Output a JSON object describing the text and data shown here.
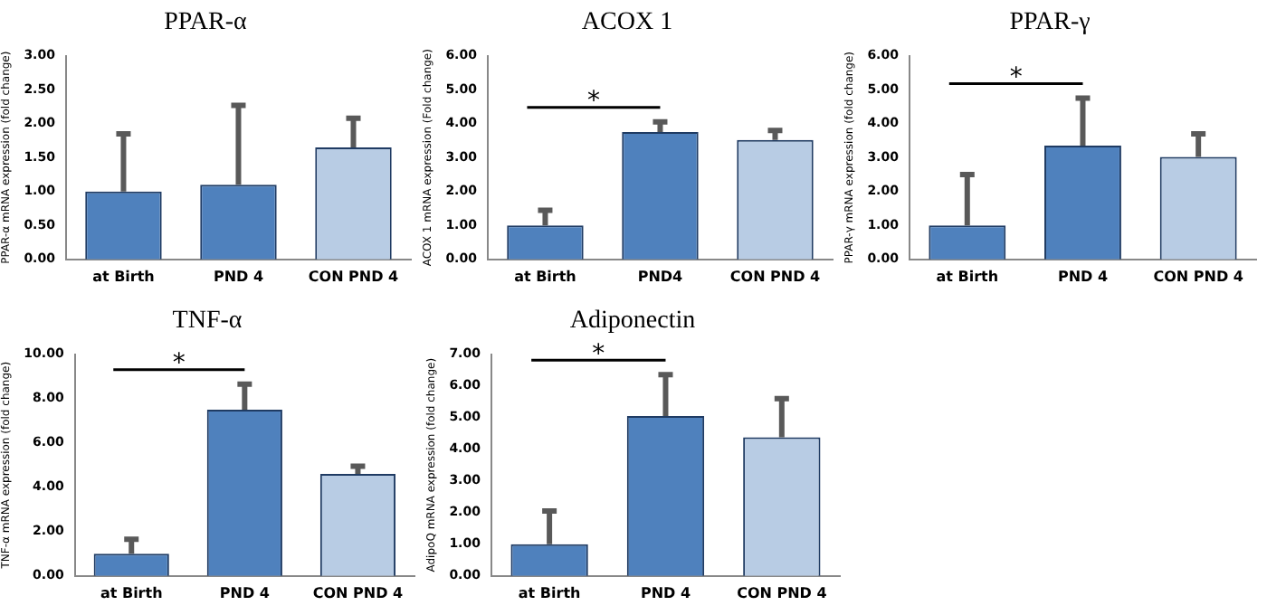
{
  "chart_data": [
    {
      "type": "bar",
      "title": "PPAR-α",
      "ylabel": "PPAR-α mRNA expression (fold change)",
      "categories": [
        "at Birth",
        "PND 4",
        "CON PND 4"
      ],
      "values": [
        1.0,
        1.1,
        1.65
      ],
      "errors": [
        [
          1.0,
          1.85
        ],
        [
          1.1,
          2.27
        ],
        [
          1.65,
          2.08
        ]
      ],
      "colors": [
        "#4f81bd",
        "#4f81bd",
        "#b8cce4"
      ],
      "ylim": [
        0,
        3
      ],
      "yticks": [
        {
          "value": 0,
          "label": "0.00"
        },
        {
          "value": 0.5,
          "label": "0.50"
        },
        {
          "value": 1,
          "label": "1.00"
        },
        {
          "value": 1.5,
          "label": "1.50"
        },
        {
          "value": 2,
          "label": "2.00"
        },
        {
          "value": 2.5,
          "label": "2.50"
        },
        {
          "value": 3,
          "label": "3.00"
        }
      ]
    },
    {
      "type": "bar",
      "title": "ACOX 1",
      "ylabel": "ACOX 1 mRNA expression (Fold change)",
      "categories": [
        "at Birth",
        "PND4",
        "CON PND 4"
      ],
      "values": [
        1.0,
        3.75,
        3.52
      ],
      "errors": [
        [
          1.0,
          1.45
        ],
        [
          3.75,
          4.05
        ],
        [
          3.52,
          3.8
        ]
      ],
      "colors": [
        "#4f81bd",
        "#4f81bd",
        "#b8cce4"
      ],
      "ylim": [
        0,
        6
      ],
      "yticks": [
        {
          "value": 0,
          "label": "0.00"
        },
        {
          "value": 1,
          "label": "1.00"
        },
        {
          "value": 2,
          "label": "2.00"
        },
        {
          "value": 3,
          "label": "3.00"
        },
        {
          "value": 4,
          "label": "4.00"
        },
        {
          "value": 5,
          "label": "5.00"
        },
        {
          "value": 6,
          "label": "6.00"
        }
      ],
      "annotations": [
        "*"
      ]
    },
    {
      "type": "bar",
      "title": "PPAR-γ",
      "ylabel": "PPAR-γ mRNA expression (fold change)",
      "categories": [
        "at Birth",
        "PND 4",
        "CON PND 4"
      ],
      "values": [
        1.0,
        3.35,
        3.02
      ],
      "errors": [
        [
          1.0,
          2.5
        ],
        [
          3.35,
          4.75
        ],
        [
          3.02,
          3.7
        ]
      ],
      "colors": [
        "#4f81bd",
        "#4f81bd",
        "#b8cce4"
      ],
      "ylim": [
        0,
        6
      ],
      "yticks": [
        {
          "value": 0,
          "label": "0.00"
        },
        {
          "value": 1,
          "label": "1.00"
        },
        {
          "value": 2,
          "label": "2.00"
        },
        {
          "value": 3,
          "label": "3.00"
        },
        {
          "value": 4,
          "label": "4.00"
        },
        {
          "value": 5,
          "label": "5.00"
        },
        {
          "value": 6,
          "label": "6.00"
        }
      ],
      "annotations": [
        "*"
      ]
    },
    {
      "type": "bar",
      "title": "TNF-α",
      "ylabel": "TNF-α mRNA expression (fold change)",
      "categories": [
        "at Birth",
        "PND 4",
        "CON PND 4"
      ],
      "values": [
        1.0,
        7.5,
        4.6
      ],
      "errors": [
        [
          1.0,
          1.65
        ],
        [
          7.5,
          8.65
        ],
        [
          4.6,
          4.95
        ]
      ],
      "colors": [
        "#4f81bd",
        "#4f81bd",
        "#b8cce4"
      ],
      "ylim": [
        0,
        10
      ],
      "yticks": [
        {
          "value": 0,
          "label": "0.00"
        },
        {
          "value": 2,
          "label": "2.00"
        },
        {
          "value": 4,
          "label": "4.00"
        },
        {
          "value": 6,
          "label": "6.00"
        },
        {
          "value": 8,
          "label": "8.00"
        },
        {
          "value": 10,
          "label": "10.00"
        }
      ],
      "annotations": [
        "*"
      ]
    },
    {
      "type": "bar",
      "title": "Adiponectin",
      "ylabel": "AdipoQ mRNA expression (fold change)",
      "categories": [
        "at Birth",
        "PND 4",
        "CON PND 4"
      ],
      "values": [
        1.0,
        5.05,
        4.38
      ],
      "errors": [
        [
          1.0,
          2.05
        ],
        [
          5.05,
          6.35
        ],
        [
          4.38,
          5.6
        ]
      ],
      "colors": [
        "#4f81bd",
        "#4f81bd",
        "#b8cce4"
      ],
      "ylim": [
        0,
        7
      ],
      "yticks": [
        {
          "value": 0,
          "label": "0.00"
        },
        {
          "value": 1,
          "label": "1.00"
        },
        {
          "value": 2,
          "label": "2.00"
        },
        {
          "value": 3,
          "label": "3.00"
        },
        {
          "value": 4,
          "label": "4.00"
        },
        {
          "value": 5,
          "label": "5.00"
        },
        {
          "value": 6,
          "label": "6.00"
        },
        {
          "value": 7,
          "label": "7.00"
        }
      ],
      "annotations": [
        "*"
      ]
    }
  ]
}
